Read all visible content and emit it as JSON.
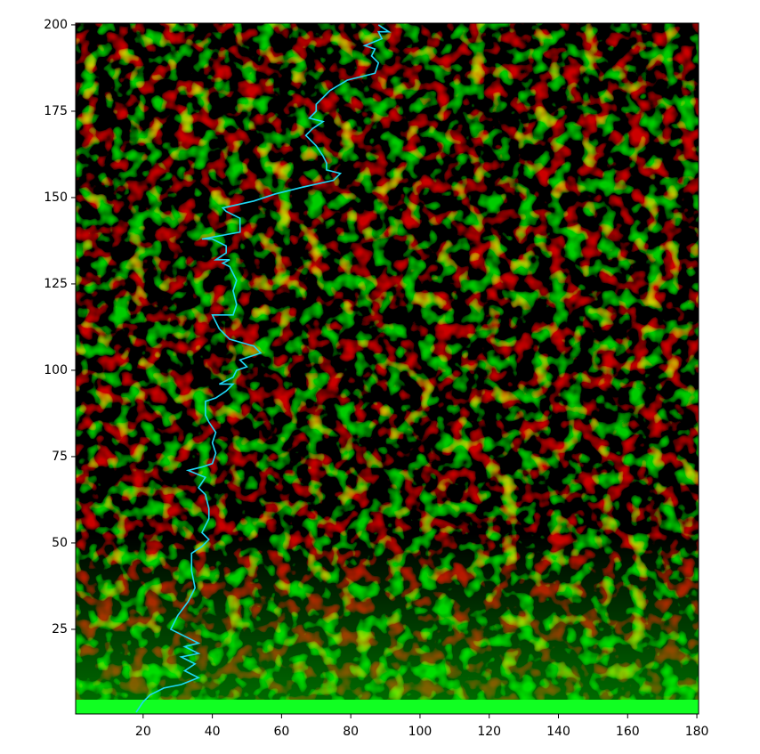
{
  "chart_data": {
    "type": "line",
    "x": [
      18,
      20,
      22,
      26,
      31,
      36,
      32,
      35,
      31,
      36,
      32,
      36,
      32,
      28,
      30,
      33,
      35,
      34,
      34,
      37,
      39,
      37,
      39,
      39,
      38,
      36,
      38,
      33,
      37,
      40,
      41,
      40,
      41,
      39,
      38,
      38,
      41,
      44,
      46,
      42,
      46,
      47,
      50,
      48,
      54,
      52,
      45,
      42,
      40,
      46,
      47,
      46,
      47,
      45,
      43,
      45,
      41,
      44,
      44,
      40,
      37,
      48,
      48,
      44,
      43,
      52,
      58,
      66,
      75,
      77,
      73,
      73,
      72,
      70,
      67,
      69,
      72,
      68,
      70,
      70,
      72,
      74,
      79,
      87,
      88,
      86,
      87,
      84,
      89,
      88,
      91,
      88
    ],
    "series": [
      {
        "color": "#1ed8f6",
        "values": [
          1,
          4,
          6,
          8,
          9,
          11,
          13,
          15,
          17,
          18,
          20,
          21,
          23,
          25,
          29,
          33,
          37,
          42,
          47,
          49,
          51,
          53,
          57,
          60,
          64,
          66,
          69,
          71,
          72,
          73,
          76,
          79,
          82,
          85,
          87,
          91,
          92,
          94,
          96,
          96,
          98,
          100,
          101,
          103,
          105,
          107,
          109,
          112,
          116,
          116,
          119,
          123,
          126,
          130,
          131,
          132,
          132,
          134,
          136,
          138,
          138,
          140,
          144,
          146,
          147,
          149,
          151,
          153,
          155,
          157,
          158,
          160,
          162,
          165,
          168,
          170,
          172,
          173,
          175,
          177,
          179,
          181,
          184,
          186,
          189,
          191,
          193,
          194,
          196,
          198,
          198,
          200
        ]
      }
    ],
    "xlim": [
      0.5,
      180.5
    ],
    "ylim": [
      0.5,
      200.5
    ],
    "xticks": [
      20,
      40,
      60,
      80,
      100,
      120,
      140,
      160,
      180
    ],
    "yticks": [
      25,
      50,
      75,
      100,
      125,
      150,
      175,
      200
    ]
  }
}
